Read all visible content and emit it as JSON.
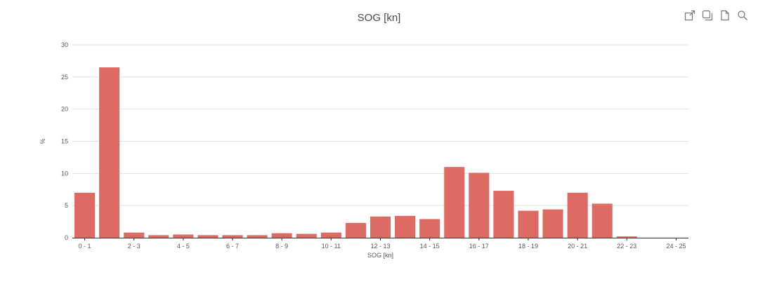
{
  "chart_data": {
    "type": "bar",
    "title": "SOG [kn]",
    "xlabel": "SOG [kn]",
    "ylabel": "%",
    "ylim": [
      0,
      30
    ],
    "yticks": [
      0,
      5,
      10,
      15,
      20,
      25,
      30
    ],
    "grid": true,
    "color": "#de6a64",
    "categories": [
      "0 - 1",
      "1 - 2",
      "2 - 3",
      "3 - 4",
      "4 - 5",
      "5 - 6",
      "6 - 7",
      "7 - 8",
      "8 - 9",
      "9 - 10",
      "10 - 11",
      "11 - 12",
      "12 - 13",
      "13 - 14",
      "14 - 15",
      "15 - 16",
      "16 - 17",
      "17 - 18",
      "18 - 19",
      "19 - 20",
      "20 - 21",
      "21 - 22",
      "22 - 23",
      "23 - 24",
      "24 - 25"
    ],
    "tick_labels_shown": [
      "0 - 1",
      "2 - 3",
      "4 - 5",
      "6 - 7",
      "8 - 9",
      "10 - 11",
      "12 - 13",
      "14 - 15",
      "16 - 17",
      "18 - 19",
      "20 - 21",
      "22 - 23",
      "24 - 25"
    ],
    "values": [
      7.0,
      26.5,
      0.8,
      0.4,
      0.5,
      0.4,
      0.4,
      0.4,
      0.7,
      0.6,
      0.8,
      2.3,
      3.3,
      3.4,
      2.9,
      11.0,
      10.1,
      7.3,
      4.2,
      4.4,
      7.0,
      5.3,
      0.2,
      0,
      0
    ]
  },
  "toolbar": {
    "icons": [
      "export-icon",
      "copy-icon",
      "file-icon",
      "search-icon"
    ]
  }
}
